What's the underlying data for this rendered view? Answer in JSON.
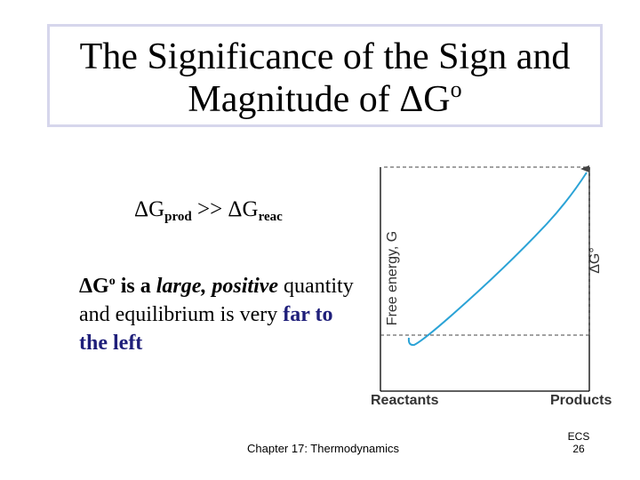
{
  "slide": {
    "title_line1": "The Significance of the Sign and",
    "title_line2": "Magnitude of ΔG",
    "title_sup": "o",
    "equation": {
      "lhs": "ΔG",
      "lhs_sub": "prod",
      "op": " >> ",
      "rhs": "ΔG",
      "rhs_sub": "reac"
    },
    "desc": {
      "dg": "ΔG",
      "dg_sup": "o",
      "is_a": " is a ",
      "large_positive": "large, positive",
      "middle": " quantity and equilibrium is very ",
      "far_left": "far to the left"
    },
    "footer": "Chapter 17: Thermodynamics",
    "page_label": "ECS",
    "page_number": "26"
  },
  "chart_data": {
    "type": "line",
    "ylabel": "Free energy, G",
    "xlabel_left": "Reactants",
    "xlabel_right": "Products",
    "delta_label": "ΔG°",
    "curve_color": "#2ba3d6"
  }
}
